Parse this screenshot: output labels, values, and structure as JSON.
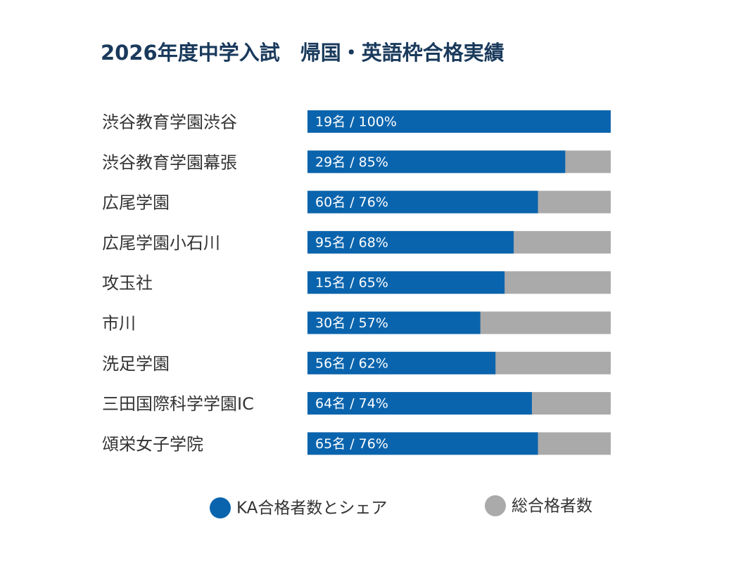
{
  "chart_data": {
    "type": "hbar",
    "title": "2026年度中学入試　帰国・英語枠合格実績",
    "categories": [
      "渋谷教育学園渋谷",
      "渋谷教育学園幕張",
      "広尾学園",
      "広尾学園小石川",
      "攻玉社",
      "市川",
      "洗足学園",
      "三田国際科学学園IC",
      "頌栄女子学院"
    ],
    "series": [
      {
        "name": "総合格者数",
        "color": "#aaaaaa",
        "values": [
          100,
          100,
          100,
          100,
          100,
          100,
          100,
          100,
          100
        ]
      },
      {
        "name": "KA合格者数とシェア",
        "color": "#0a64ad",
        "values": [
          100,
          85,
          76,
          68,
          65,
          57,
          62,
          74,
          76
        ],
        "value_labels": [
          "19名 / 100%",
          "29名 / 85%",
          "60名 / 76%",
          "95名 / 68%",
          "15名 / 65%",
          "30名 / 57%",
          "56名 / 62%",
          "64名 / 74%",
          "65名 / 76%"
        ]
      }
    ],
    "xlim": [
      0,
      100
    ],
    "legend": "bottom"
  }
}
